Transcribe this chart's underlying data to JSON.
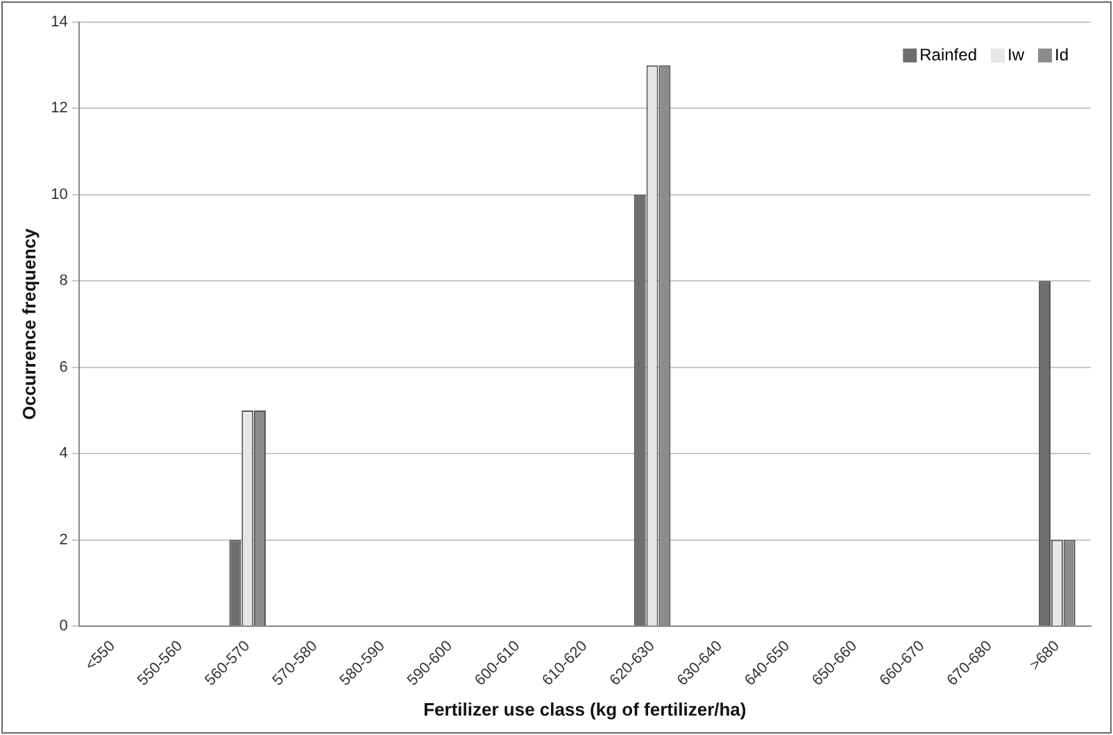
{
  "chart_data": {
    "type": "bar",
    "xlabel": "Fertilizer use class (kg of fertilizer/ha)",
    "ylabel": "Occurrence frequency",
    "categories": [
      "<550",
      "550-560",
      "560-570",
      "570-580",
      "580-590",
      "590-600",
      "600-610",
      "610-620",
      "620-630",
      "630-640",
      "640-650",
      "650-660",
      "660-670",
      "670-680",
      ">680"
    ],
    "series": [
      {
        "name": "Rainfed",
        "color": "#6e6e6e",
        "values": [
          0,
          0,
          2,
          0,
          0,
          0,
          0,
          0,
          10,
          0,
          0,
          0,
          0,
          0,
          8
        ]
      },
      {
        "name": "Iw",
        "color": "#e6e6e6",
        "values": [
          0,
          0,
          5,
          0,
          0,
          0,
          0,
          0,
          13,
          0,
          0,
          0,
          0,
          0,
          2
        ]
      },
      {
        "name": "Id",
        "color": "#8c8c8c",
        "values": [
          0,
          0,
          5,
          0,
          0,
          0,
          0,
          0,
          13,
          0,
          0,
          0,
          0,
          0,
          2
        ]
      }
    ],
    "ylim": [
      0,
      14
    ],
    "yticks": [
      0,
      2,
      4,
      6,
      8,
      10,
      12,
      14
    ],
    "grid": "y",
    "legend": "top right"
  }
}
